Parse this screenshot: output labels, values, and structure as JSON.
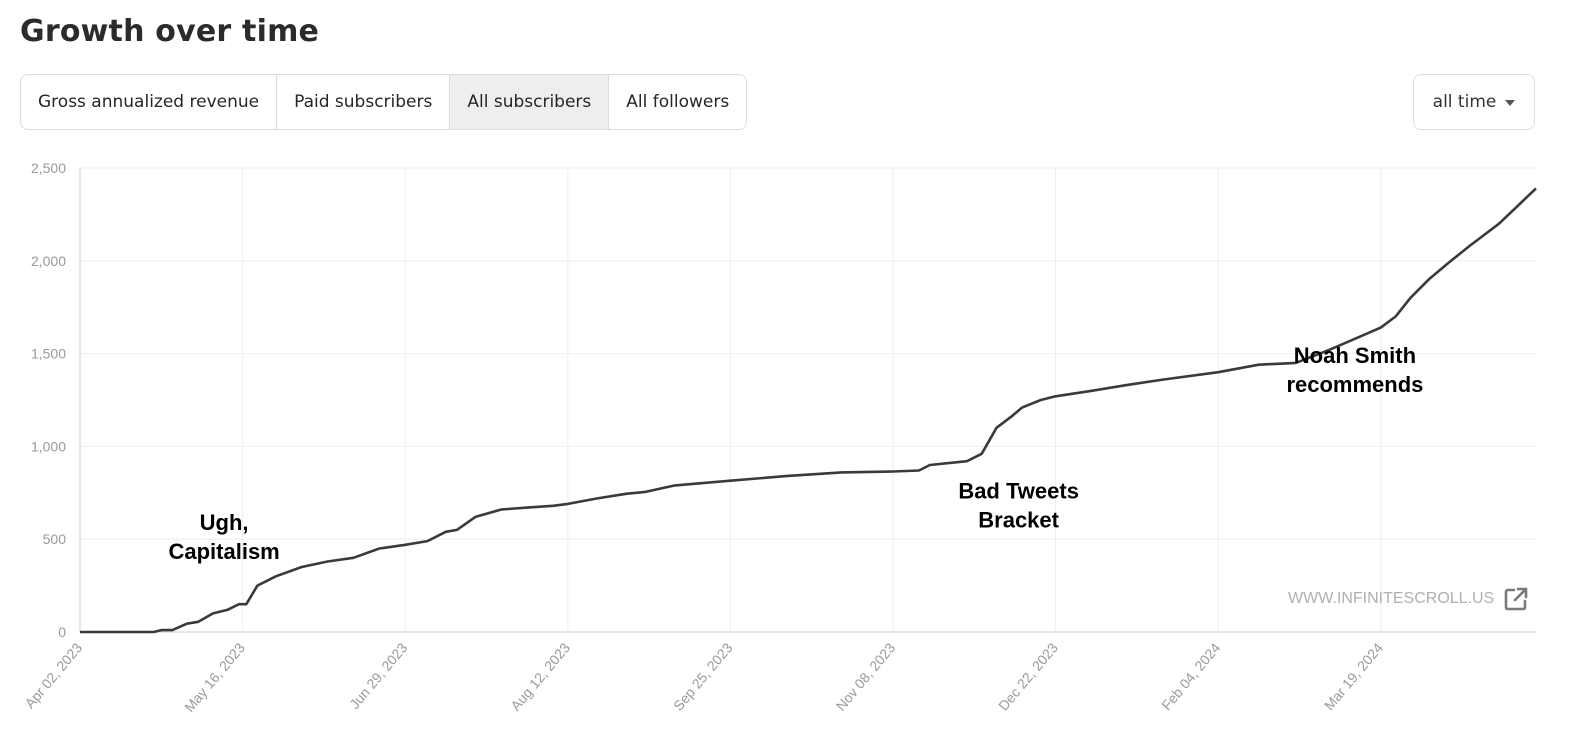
{
  "header": {
    "title": "Growth over time"
  },
  "tabs": [
    {
      "label": "Gross annualized revenue",
      "active": false
    },
    {
      "label": "Paid subscribers",
      "active": false
    },
    {
      "label": "All subscribers",
      "active": true
    },
    {
      "label": "All followers",
      "active": false
    }
  ],
  "range": {
    "value": "all time"
  },
  "watermark": {
    "text": "WWW.INFINITESCROLL.US",
    "icon": "external-link-icon"
  },
  "colors": {
    "line": "#3a3a3a",
    "grid": "#eeeeee",
    "axis": "#cccccc",
    "tick": "#9a9a9a",
    "active_tab": "#eeeeee"
  },
  "chart_data": {
    "type": "line",
    "title": "",
    "xlabel": "",
    "ylabel": "",
    "ylim": [
      0,
      2500
    ],
    "xlim": [
      "2023-04-02",
      "2024-04-30"
    ],
    "grid": true,
    "y_ticks": [
      0,
      500,
      1000,
      1500,
      2000,
      2500
    ],
    "y_tick_labels": [
      "0",
      "500",
      "1,000",
      "1,500",
      "2,000",
      "2,500"
    ],
    "x_ticks": [
      "2023-04-02",
      "2023-05-16",
      "2023-06-29",
      "2023-08-12",
      "2023-09-25",
      "2023-11-08",
      "2023-12-22",
      "2024-02-04",
      "2024-03-19"
    ],
    "x_tick_labels": [
      "Apr 02, 2023",
      "May 16, 2023",
      "Jun 29, 2023",
      "Aug 12, 2023",
      "Sep 25, 2023",
      "Nov 08, 2023",
      "Dec 22, 2023",
      "Feb 04, 2024",
      "Mar 19, 2024"
    ],
    "series": [
      {
        "x": [
          "2023-04-02",
          "2023-04-22",
          "2023-04-24",
          "2023-04-27",
          "2023-05-01",
          "2023-05-04",
          "2023-05-08",
          "2023-05-12",
          "2023-05-15",
          "2023-05-17",
          "2023-05-20",
          "2023-05-25",
          "2023-06-01",
          "2023-06-08",
          "2023-06-15",
          "2023-06-22",
          "2023-06-29",
          "2023-07-05",
          "2023-07-10",
          "2023-07-13",
          "2023-07-18",
          "2023-07-25",
          "2023-08-01",
          "2023-08-08",
          "2023-08-12",
          "2023-08-20",
          "2023-08-28",
          "2023-09-02",
          "2023-09-10",
          "2023-09-25",
          "2023-10-10",
          "2023-10-25",
          "2023-11-08",
          "2023-11-15",
          "2023-11-18",
          "2023-11-28",
          "2023-12-02",
          "2023-12-06",
          "2023-12-10",
          "2023-12-13",
          "2023-12-18",
          "2023-12-22",
          "2024-01-01",
          "2024-01-10",
          "2024-01-20",
          "2024-02-04",
          "2024-02-15",
          "2024-02-25",
          "2024-03-05",
          "2024-03-12",
          "2024-03-19",
          "2024-03-23",
          "2024-03-27",
          "2024-04-01",
          "2024-04-07",
          "2024-04-12",
          "2024-04-20",
          "2024-04-30"
        ],
        "y": [
          0,
          0,
          10,
          10,
          45,
          55,
          100,
          120,
          150,
          150,
          250,
          300,
          350,
          380,
          400,
          450,
          470,
          490,
          540,
          550,
          620,
          660,
          670,
          680,
          690,
          720,
          745,
          755,
          790,
          815,
          840,
          860,
          865,
          870,
          900,
          920,
          960,
          1100,
          1160,
          1210,
          1250,
          1270,
          1300,
          1330,
          1360,
          1400,
          1440,
          1450,
          1520,
          1580,
          1640,
          1700,
          1800,
          1900,
          2000,
          2080,
          2200,
          2390
        ]
      }
    ],
    "annotations": [
      {
        "text": [
          "Ugh,",
          "Capitalism"
        ],
        "x": "2023-05-11",
        "y": 550
      },
      {
        "text": [
          "Bad Tweets",
          "Bracket"
        ],
        "x": "2023-12-12",
        "y": 720
      },
      {
        "text": [
          "Noah Smith",
          "recommends"
        ],
        "x": "2024-03-12",
        "y": 1450
      }
    ]
  }
}
